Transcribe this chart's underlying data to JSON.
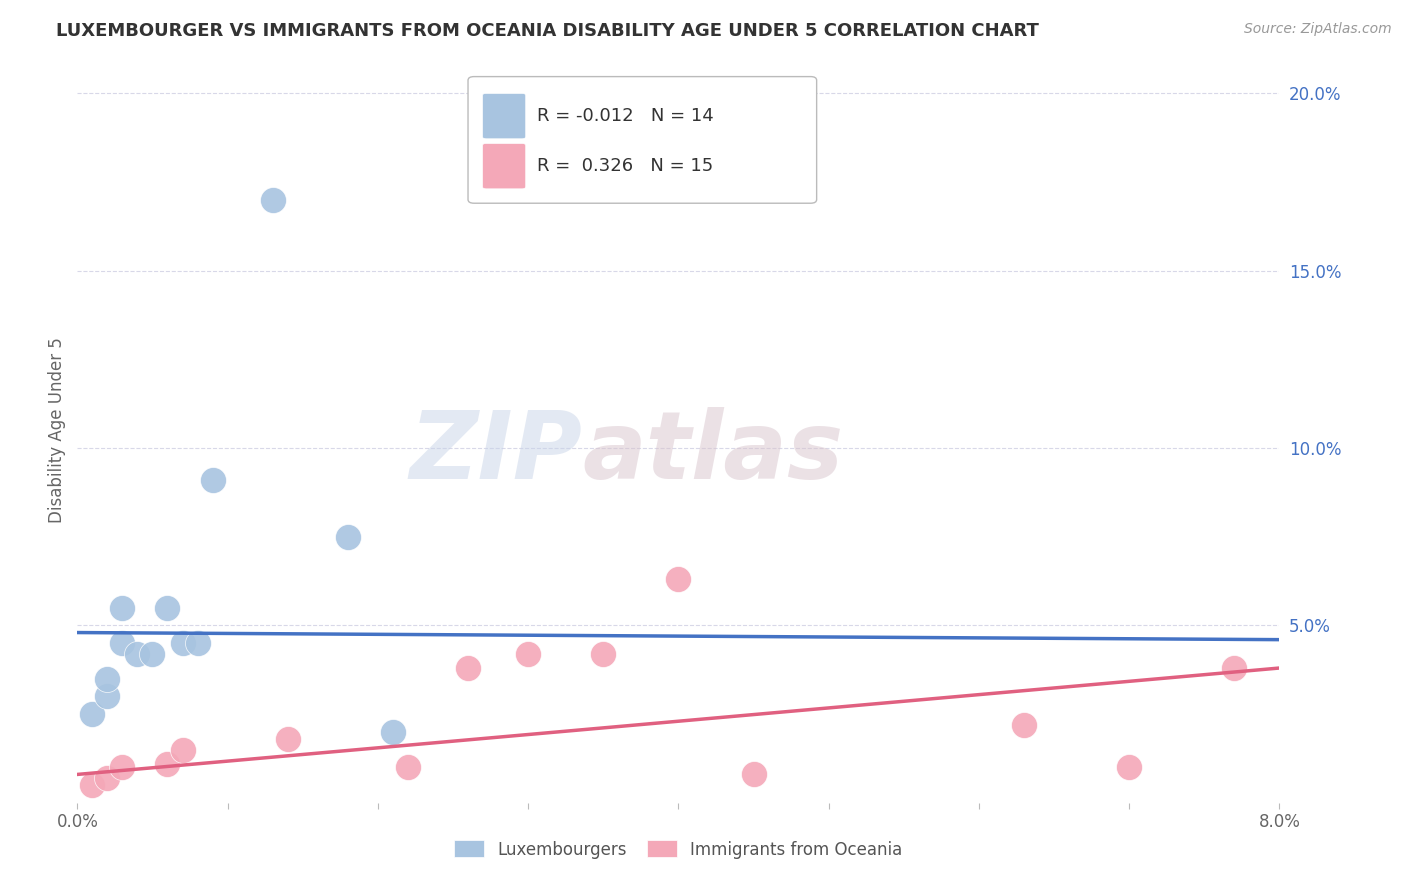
{
  "title": "LUXEMBOURGER VS IMMIGRANTS FROM OCEANIA DISABILITY AGE UNDER 5 CORRELATION CHART",
  "source": "Source: ZipAtlas.com",
  "ylabel": "Disability Age Under 5",
  "xlim": [
    0.0,
    0.08
  ],
  "ylim": [
    0.0,
    0.21
  ],
  "xticks": [
    0.0,
    0.01,
    0.02,
    0.03,
    0.04,
    0.05,
    0.06,
    0.07,
    0.08
  ],
  "yticks_right": [
    0.05,
    0.1,
    0.15,
    0.2
  ],
  "ytick_labels_right": [
    "5.0%",
    "10.0%",
    "15.0%",
    "20.0%"
  ],
  "lux_x": [
    0.001,
    0.002,
    0.002,
    0.003,
    0.003,
    0.004,
    0.005,
    0.006,
    0.007,
    0.008,
    0.009,
    0.013,
    0.018,
    0.021
  ],
  "lux_y": [
    0.025,
    0.03,
    0.035,
    0.045,
    0.055,
    0.042,
    0.042,
    0.055,
    0.045,
    0.045,
    0.091,
    0.17,
    0.075,
    0.02
  ],
  "imm_x": [
    0.001,
    0.002,
    0.003,
    0.006,
    0.007,
    0.014,
    0.022,
    0.026,
    0.03,
    0.035,
    0.04,
    0.045,
    0.063,
    0.07,
    0.077
  ],
  "imm_y": [
    0.005,
    0.007,
    0.01,
    0.011,
    0.015,
    0.018,
    0.01,
    0.038,
    0.042,
    0.042,
    0.063,
    0.008,
    0.022,
    0.01,
    0.038
  ],
  "lux_line_y0": 0.048,
  "lux_line_y1": 0.046,
  "imm_line_y0": 0.008,
  "imm_line_y1": 0.038,
  "lux_R": "-0.012",
  "lux_N": "14",
  "imm_R": "0.326",
  "imm_N": "15",
  "lux_color": "#a8c4e0",
  "imm_color": "#f4a8b8",
  "lux_line_color": "#4472c4",
  "imm_line_color": "#e06080",
  "watermark_zip": "ZIP",
  "watermark_atlas": "atlas",
  "background_color": "#ffffff",
  "grid_color": "#d8d8e8"
}
